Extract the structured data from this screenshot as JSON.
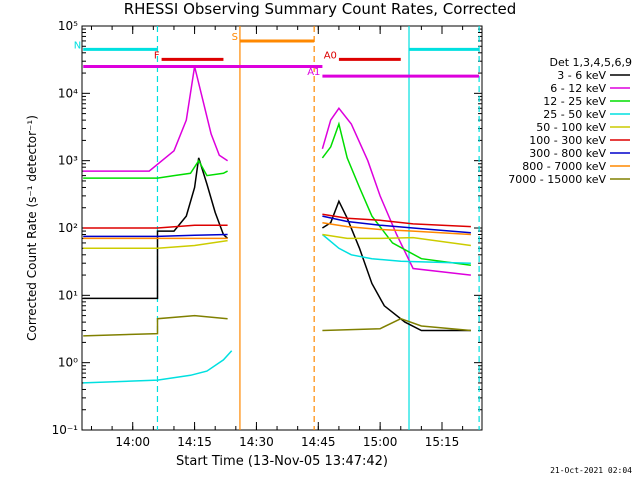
{
  "chart_data": {
    "type": "line",
    "title": "RHESSI Observing Summary Count Rates, Corrected",
    "xlabel": "Start Time (13-Nov-05 13:47:42)",
    "ylabel": "Corrected Count Rate (s⁻¹ detector⁻¹)",
    "yscale": "log",
    "ylim": [
      0.1,
      100000
    ],
    "xlim": [
      "13:47:42",
      "15:24:42"
    ],
    "x_ticks": [
      "14:00",
      "14:15",
      "14:30",
      "14:45",
      "15:00",
      "15:15"
    ],
    "y_ticks": [
      "10⁻¹",
      "10⁰",
      "10¹",
      "10²",
      "10³",
      "10⁴",
      "10⁵"
    ],
    "legend_title": "Det 1,3,4,5,6,9",
    "legend_position": "right",
    "series": [
      {
        "name": "3 - 6 keV",
        "color": "#000000",
        "segments": [
          [
            [
              "13:48",
              9
            ],
            [
              "14:06",
              9
            ],
            [
              "14:06",
              90
            ],
            [
              "14:10",
              90
            ],
            [
              "14:13",
              150
            ],
            [
              "14:15",
              400
            ],
            [
              "14:16",
              1100
            ],
            [
              "14:18",
              450
            ],
            [
              "14:20",
              170
            ],
            [
              "14:22",
              80
            ],
            [
              "14:23",
              70
            ]
          ],
          [
            [
              "14:46",
              100
            ],
            [
              "14:48",
              120
            ],
            [
              "14:50",
              250
            ],
            [
              "14:52",
              140
            ],
            [
              "14:55",
              50
            ],
            [
              "14:58",
              15
            ],
            [
              "15:01",
              7
            ],
            [
              "15:06",
              4
            ],
            [
              "15:10",
              3
            ],
            [
              "15:22",
              3
            ]
          ]
        ]
      },
      {
        "name": "6 - 12 keV",
        "color": "#dd00dd",
        "segments": [
          [
            [
              "13:48",
              700
            ],
            [
              "14:04",
              700
            ],
            [
              "14:10",
              1400
            ],
            [
              "14:13",
              4000
            ],
            [
              "14:15",
              25000
            ],
            [
              "14:17",
              8000
            ],
            [
              "14:19",
              2500
            ],
            [
              "14:21",
              1200
            ],
            [
              "14:23",
              1000
            ]
          ],
          [
            [
              "14:46",
              1500
            ],
            [
              "14:48",
              4000
            ],
            [
              "14:50",
              6000
            ],
            [
              "14:53",
              3500
            ],
            [
              "14:57",
              1000
            ],
            [
              "15:00",
              300
            ],
            [
              "15:04",
              80
            ],
            [
              "15:08",
              25
            ],
            [
              "15:22",
              20
            ]
          ]
        ]
      },
      {
        "name": "12 - 25 keV",
        "color": "#00dd00",
        "segments": [
          [
            [
              "13:48",
              550
            ],
            [
              "14:06",
              550
            ],
            [
              "14:10",
              600
            ],
            [
              "14:14",
              650
            ],
            [
              "14:16",
              1000
            ],
            [
              "14:18",
              600
            ],
            [
              "14:22",
              650
            ],
            [
              "14:23",
              700
            ]
          ],
          [
            [
              "14:46",
              1100
            ],
            [
              "14:48",
              1600
            ],
            [
              "14:50",
              3500
            ],
            [
              "14:52",
              1100
            ],
            [
              "14:55",
              400
            ],
            [
              "14:58",
              150
            ],
            [
              "15:03",
              60
            ],
            [
              "15:10",
              35
            ],
            [
              "15:22",
              28
            ]
          ]
        ]
      },
      {
        "name": "25 - 50 keV",
        "color": "#00e0e0",
        "segments": [
          [
            [
              "13:48",
              0.5
            ],
            [
              "14:06",
              0.55
            ],
            [
              "14:14",
              0.65
            ],
            [
              "14:18",
              0.75
            ],
            [
              "14:22",
              1.1
            ],
            [
              "14:24",
              1.5
            ]
          ],
          [
            [
              "14:46",
              80
            ],
            [
              "14:50",
              50
            ],
            [
              "14:53",
              40
            ],
            [
              "14:58",
              35
            ],
            [
              "15:05",
              32
            ],
            [
              "15:22",
              30
            ]
          ]
        ]
      },
      {
        "name": "50 - 100 keV",
        "color": "#cccc00",
        "segments": [
          [
            [
              "13:48",
              50
            ],
            [
              "14:06",
              50
            ],
            [
              "14:15",
              55
            ],
            [
              "14:23",
              65
            ]
          ],
          [
            [
              "14:46",
              80
            ],
            [
              "14:52",
              70
            ],
            [
              "15:00",
              70
            ],
            [
              "15:08",
              72
            ],
            [
              "15:22",
              55
            ]
          ]
        ]
      },
      {
        "name": "100 - 300 keV",
        "color": "#dd0000",
        "segments": [
          [
            [
              "13:48",
              100
            ],
            [
              "14:06",
              100
            ],
            [
              "14:15",
              110
            ],
            [
              "14:23",
              110
            ]
          ],
          [
            [
              "14:46",
              160
            ],
            [
              "14:52",
              140
            ],
            [
              "15:00",
              130
            ],
            [
              "15:08",
              115
            ],
            [
              "15:22",
              105
            ]
          ]
        ]
      },
      {
        "name": "300 - 800 keV",
        "color": "#0000cc",
        "segments": [
          [
            [
              "13:48",
              75
            ],
            [
              "14:06",
              75
            ],
            [
              "14:15",
              78
            ],
            [
              "14:23",
              80
            ]
          ],
          [
            [
              "14:46",
              150
            ],
            [
              "14:52",
              125
            ],
            [
              "15:00",
              110
            ],
            [
              "15:08",
              100
            ],
            [
              "15:22",
              85
            ]
          ]
        ]
      },
      {
        "name": "800 - 7000 keV",
        "color": "#ff8800",
        "segments": [
          [
            [
              "13:48",
              70
            ],
            [
              "14:06",
              70
            ],
            [
              "14:15",
              70
            ],
            [
              "14:23",
              70
            ]
          ],
          [
            [
              "14:46",
              120
            ],
            [
              "14:52",
              105
            ],
            [
              "15:00",
              95
            ],
            [
              "15:08",
              90
            ],
            [
              "15:22",
              80
            ]
          ]
        ]
      },
      {
        "name": "7000 - 15000 keV",
        "color": "#808000",
        "segments": [
          [
            [
              "13:48",
              2.5
            ],
            [
              "14:06",
              2.7
            ],
            [
              "14:06",
              4.5
            ],
            [
              "14:15",
              5
            ],
            [
              "14:23",
              4.5
            ]
          ],
          [
            [
              "14:46",
              3
            ],
            [
              "15:00",
              3.2
            ],
            [
              "15:05",
              4.5
            ],
            [
              "15:10",
              3.5
            ],
            [
              "15:22",
              3
            ]
          ]
        ]
      }
    ],
    "vertical_markers": [
      {
        "time": "14:06",
        "color": "#00e0e0",
        "style": "dashed"
      },
      {
        "time": "14:26",
        "color": "#ff8800",
        "style": "solid"
      },
      {
        "time": "14:44",
        "color": "#ff8800",
        "style": "dashed"
      },
      {
        "time": "15:07",
        "color": "#00e0e0",
        "style": "solid"
      },
      {
        "time": "15:24",
        "color": "#00e0e0",
        "style": "dashed"
      }
    ],
    "state_bars": [
      {
        "label": "N",
        "color": "#00e0e0",
        "y": 45000,
        "segments": [
          [
            "13:48",
            "14:06"
          ],
          [
            "15:07",
            "15:24"
          ]
        ]
      },
      {
        "label": "S",
        "color": "#ff8800",
        "y": 60000,
        "segments": [
          [
            "14:26",
            "14:44"
          ]
        ]
      },
      {
        "label": "F",
        "color": "#dd0000",
        "y": 32000,
        "segments": [
          [
            "14:07",
            "14:22"
          ]
        ]
      },
      {
        "label": "A0",
        "color": "#dd0000",
        "y": 32000,
        "segments": [
          [
            "14:50",
            "15:05"
          ]
        ]
      },
      {
        "label": "",
        "color": "#dd00dd",
        "y": 25000,
        "segments": [
          [
            "13:48",
            "14:46"
          ]
        ]
      },
      {
        "label": "A1",
        "color": "#dd00dd",
        "y": 18000,
        "segments": [
          [
            "14:46",
            "15:24"
          ]
        ]
      }
    ]
  },
  "footer": {
    "date": "21-Oct-2021 02:04"
  }
}
